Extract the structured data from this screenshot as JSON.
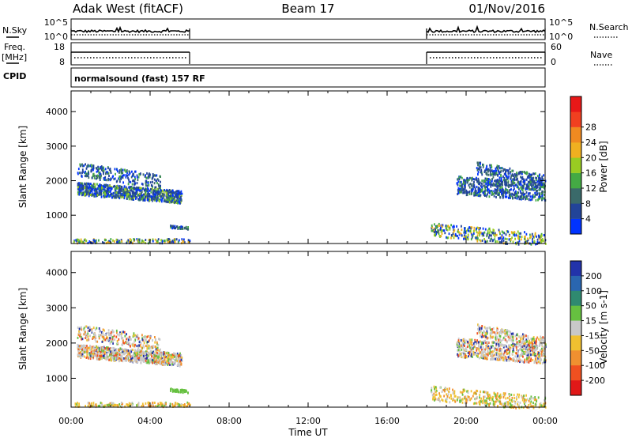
{
  "chart_data": {
    "type": "heatmap",
    "header": {
      "site": "Adak West (fitACF)",
      "beam": "Beam 17",
      "date": "01/Nov/2016"
    },
    "time_axis": {
      "label": "Time UT",
      "range_hours": [
        0,
        24
      ],
      "ticks": [
        {
          "h": 0,
          "label": "00:00"
        },
        {
          "h": 4,
          "label": "04:00"
        },
        {
          "h": 8,
          "label": "08:00"
        },
        {
          "h": 12,
          "label": "12:00"
        },
        {
          "h": 16,
          "label": "16:00"
        },
        {
          "h": 20,
          "label": "20:00"
        },
        {
          "h": 24,
          "label": "00:00"
        }
      ]
    },
    "data_gaps_hours": [
      [
        6.0,
        18.0
      ]
    ],
    "strips": {
      "nsky": {
        "left_label": "N.Sky",
        "right_label": "N.Search",
        "left_ticks": [
          "10^5",
          "10^0"
        ],
        "right_ticks": [
          "10^5",
          "10^0"
        ]
      },
      "freq": {
        "left_label": "Freq.",
        "left_unit": "[MHz]",
        "left_ticks": [
          "18",
          "8"
        ],
        "right_label": "Nave",
        "right_ticks": [
          "60",
          "0"
        ]
      },
      "cpid": {
        "label": "CPID",
        "value": "normalsound (fast) 157 RF"
      }
    },
    "range_axis": {
      "label": "Slant Range [km]",
      "range_km": [
        180,
        4600
      ],
      "ticks": [
        1000,
        2000,
        3000,
        4000
      ]
    },
    "panels": [
      {
        "name": "power",
        "colorbar_label": "Power [dB]",
        "colorbar_ticks": [
          "4",
          "8",
          "12",
          "16",
          "20",
          "24",
          "28"
        ],
        "colors": [
          "#0033ff",
          "#224499",
          "#3a6a6a",
          "#44aa44",
          "#99cc22",
          "#f0b020",
          "#f08a20",
          "#f04020",
          "#e81818"
        ]
      },
      {
        "name": "velocity",
        "colorbar_label": "Velocity [m s-1]",
        "colorbar_ticks": [
          "200",
          "100",
          "50",
          "15",
          "-15",
          "-50",
          "-100",
          "-200"
        ],
        "colors": [
          "#2233aa",
          "#2a66b0",
          "#2f8a70",
          "#66c040",
          "#c8c8c8",
          "#f0c030",
          "#f09030",
          "#f05020",
          "#e01818"
        ]
      }
    ]
  }
}
